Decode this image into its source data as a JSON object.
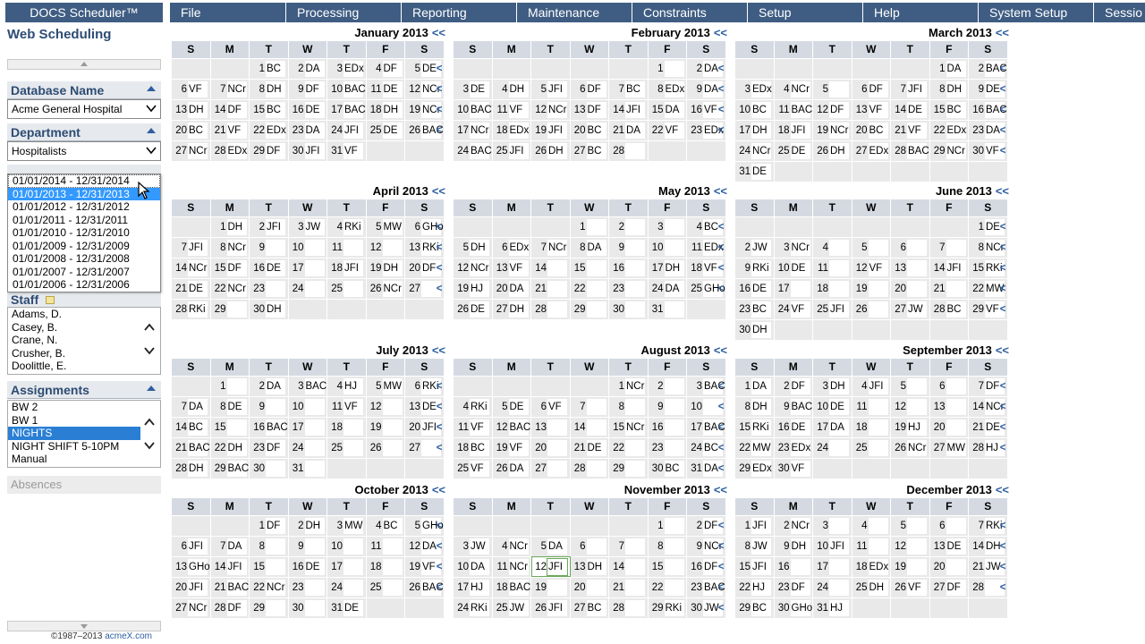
{
  "app": {
    "title": "DOCS Scheduler™",
    "subtitle": "Web Scheduling"
  },
  "sidebar": {
    "database": {
      "label": "Database Name",
      "value": "Acme General Hospital"
    },
    "department": {
      "label": "Department",
      "value": "Hospitalists"
    },
    "period": {
      "options": [
        "01/01/2014 - 12/31/2014",
        "01/01/2013 - 12/31/2013",
        "01/01/2012 - 12/31/2012",
        "01/01/2011 - 12/31/2011",
        "01/01/2010 - 12/31/2010",
        "01/01/2009 - 12/31/2009",
        "01/01/2008 - 12/31/2008",
        "01/01/2007 - 12/31/2007",
        "01/01/2006 - 12/31/2006"
      ],
      "selected_index": 1
    },
    "staff": {
      "label": "Staff",
      "items": [
        "Adams, D.",
        "Casey, B.",
        "Crane, N.",
        "Crusher, B.",
        "Doolittle, E."
      ]
    },
    "assignments": {
      "label": "Assignments",
      "items": [
        "BW 2",
        "BW 1",
        "NIGHTS",
        "NIGHT SHIFT 5-10PM",
        "Manual"
      ],
      "selected_index": 2
    },
    "absences": {
      "label": "Absences"
    },
    "copyright": {
      "text": "©1987–2013",
      "link": "acmeX.com"
    }
  },
  "menu": [
    "File",
    "Processing",
    "Reporting",
    "Maintenance",
    "Constraints",
    "Setup",
    "Help",
    "System Setup",
    "Sessio"
  ],
  "calendar": {
    "dayheaders": [
      "S",
      "M",
      "T",
      "W",
      "T",
      "F",
      "S"
    ],
    "nav": "<<",
    "rowarrow": "<",
    "months": [
      {
        "title": "January 2013",
        "offset": 2,
        "days": 31,
        "assign": [
          "BC",
          "DA",
          "EDx",
          "DF",
          "DE",
          "VF",
          "NCr",
          "DH",
          "DF",
          "BAC",
          "DE",
          "NCr",
          "DH",
          "DF",
          "BC",
          "DE",
          "BAC",
          "DH",
          "NCr",
          "BC",
          "VF",
          "EDx",
          "DA",
          "JFI",
          "DE",
          "BAC",
          "NCr",
          "EDx",
          "DF",
          "JFI",
          "VF"
        ]
      },
      {
        "title": "February 2013",
        "offset": 5,
        "days": 28,
        "assign": [
          "",
          "DA",
          "DE",
          "DH",
          "JFI",
          "DF",
          "BC",
          "EDx",
          "DA",
          "BAC",
          "VF",
          "NCr",
          "DF",
          "JFI",
          "DA",
          "VF",
          "NCr",
          "EDx",
          "JFI",
          "BC",
          "DA",
          "VF",
          "EDx",
          "BAC",
          "JFI",
          "DH",
          "BC",
          ""
        ]
      },
      {
        "title": "March 2013",
        "offset": 5,
        "days": 31,
        "assign": [
          "DA",
          "BAC",
          "EDx",
          "NCr",
          "",
          "DF",
          "JFI",
          "DH",
          "DE",
          "BC",
          "BAC",
          "DF",
          "VF",
          "DE",
          "BC",
          "BAC",
          "DH",
          "JFI",
          "NCr",
          "BC",
          "VF",
          "EDx",
          "DA",
          "NCr",
          "DE",
          "DH",
          "EDx",
          "BAC",
          "NCr",
          "VF",
          "DE"
        ]
      },
      {
        "title": "April 2013",
        "offset": 1,
        "days": 30,
        "assign": [
          "DH",
          "JFI",
          "JW",
          "RKi",
          "MW",
          "GHo",
          "JFI",
          "NCr",
          "",
          "",
          "",
          "",
          "RKi",
          "NCr",
          "DF",
          "DE",
          "",
          "JFI",
          "DH",
          "DF",
          "DE",
          "NCr",
          "",
          "",
          "",
          "NCr",
          "",
          "RKi",
          "",
          "DH"
        ]
      },
      {
        "title": "May 2013",
        "offset": 3,
        "days": 31,
        "assign": [
          "",
          "",
          "",
          "BC",
          "DH",
          "EDx",
          "NCr",
          "DA",
          "",
          "",
          "EDx",
          "NCr",
          "VF",
          "",
          "",
          "",
          "DH",
          "VF",
          "HJ",
          "DA",
          "",
          "",
          "",
          "DA",
          "GHo",
          "DE",
          "DH",
          "",
          "",
          "",
          ""
        ]
      },
      {
        "title": "June 2013",
        "offset": 6,
        "days": 30,
        "assign": [
          "DE",
          "JW",
          "NCr",
          "",
          "",
          "",
          "",
          "NCr",
          "RKi",
          "DE",
          "",
          "VF",
          "",
          "JFI",
          "RKi",
          "DE",
          "",
          "",
          "",
          "",
          "",
          "MW",
          "BC",
          "VF",
          "JFI",
          "",
          "JW",
          "BC",
          "VF",
          "DH"
        ]
      },
      {
        "title": "July 2013",
        "offset": 1,
        "days": 31,
        "assign": [
          "",
          "DA",
          "BAC",
          "HJ",
          "MW",
          "RKi",
          "DA",
          "DE",
          "",
          "",
          "VF",
          "",
          "DE",
          "BC",
          "",
          "BAC",
          "",
          "",
          "",
          "JFI",
          "BAC",
          "DH",
          "DF",
          "",
          "",
          "",
          "",
          "DH",
          "BAC",
          "",
          ""
        ]
      },
      {
        "title": "August 2013",
        "offset": 4,
        "days": 31,
        "assign": [
          "NCr",
          "",
          "BAC",
          "RKi",
          "DE",
          "VF",
          "",
          "",
          "",
          "",
          "VF",
          "BAC",
          "",
          "",
          "NCr",
          "",
          "BAC",
          "BC",
          "VF",
          "",
          "DE",
          "",
          "",
          "BC",
          "VF",
          "DA",
          "",
          "",
          "",
          "BC",
          "DA"
        ]
      },
      {
        "title": "September 2013",
        "offset": 0,
        "days": 30,
        "assign": [
          "DA",
          "DF",
          "DH",
          "JFI",
          "",
          "",
          "DF",
          "DH",
          "BAC",
          "DE",
          "",
          "",
          "",
          "NCr",
          "RKi",
          "DE",
          "DA",
          "",
          "HJ",
          "",
          "DE",
          "MW",
          "EDx",
          "",
          "",
          "NCr",
          "MW",
          "HJ",
          "EDx",
          "VF"
        ]
      },
      {
        "title": "October 2013",
        "offset": 2,
        "days": 31,
        "assign": [
          "DF",
          "DH",
          "MW",
          "BC",
          "GHo",
          "JFI",
          "DA",
          "",
          "",
          "",
          "",
          "DA",
          "GHo",
          "JFI",
          "",
          "DE",
          "",
          "",
          "VF",
          "JFI",
          "BAC",
          "NCr",
          "",
          "",
          "",
          "BAC",
          "NCr",
          "DF",
          "",
          "",
          "DE"
        ]
      },
      {
        "title": "November 2013",
        "offset": 5,
        "days": 30,
        "assign": [
          "",
          "DF",
          "JW",
          "NCr",
          "DA",
          "",
          "",
          "",
          "NCr",
          "DA",
          "NCr",
          "JFI",
          "DH",
          "",
          "",
          "DF",
          "HJ",
          "BAC",
          "",
          "",
          "",
          "",
          "BAC",
          "RKi",
          "JW",
          "JFI",
          "BC",
          "",
          "RKi",
          "JW"
        ]
      },
      {
        "title": "December 2013",
        "offset": 0,
        "days": 31,
        "assign": [
          "JFI",
          "NCr",
          "",
          "",
          "",
          "",
          "RKi",
          "JW",
          "DH",
          "JFI",
          "",
          "",
          "DE",
          "DH",
          "JFI",
          "",
          "",
          "EDx",
          "",
          "",
          "JW",
          "HJ",
          "DF",
          "",
          "DH",
          "VF",
          "DF",
          "",
          "BC",
          "GHo",
          "HJ"
        ]
      }
    ],
    "today": {
      "month": 10,
      "day": 12
    }
  }
}
